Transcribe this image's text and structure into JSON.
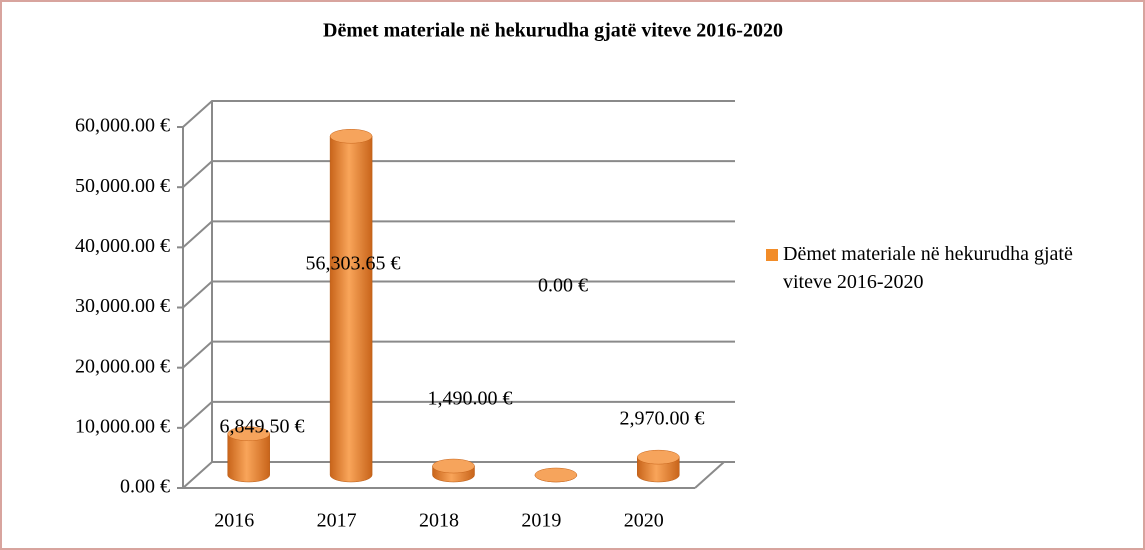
{
  "chart_data": {
    "type": "bar",
    "title": "Dëmet materiale në hekurudha gjatë viteve 2016-2020",
    "categories": [
      "2016",
      "2017",
      "2018",
      "2019",
      "2020"
    ],
    "series": [
      {
        "name": "Dëmet materiale në hekurudha gjatë viteve 2016-2020",
        "color": "#f28c28",
        "values": [
          6849.5,
          56303.65,
          1490,
          0,
          2970
        ],
        "value_labels": [
          "6,849.50 €",
          "56,303.65 €",
          "1,490.00 €",
          "0.00 €",
          "2,970.00 €"
        ]
      }
    ],
    "ylim": [
      0,
      60000
    ],
    "yticks": [
      {
        "value": 0,
        "label": "0.00 €"
      },
      {
        "value": 10000,
        "label": "10,000.00 €"
      },
      {
        "value": 20000,
        "label": "20,000.00 €"
      },
      {
        "value": 30000,
        "label": "30,000.00 €"
      },
      {
        "value": 40000,
        "label": "40,000.00 €"
      },
      {
        "value": 50000,
        "label": "50,000.00 €"
      },
      {
        "value": 60000,
        "label": "60,000.00 €"
      }
    ],
    "grid": true,
    "legend": "right"
  }
}
